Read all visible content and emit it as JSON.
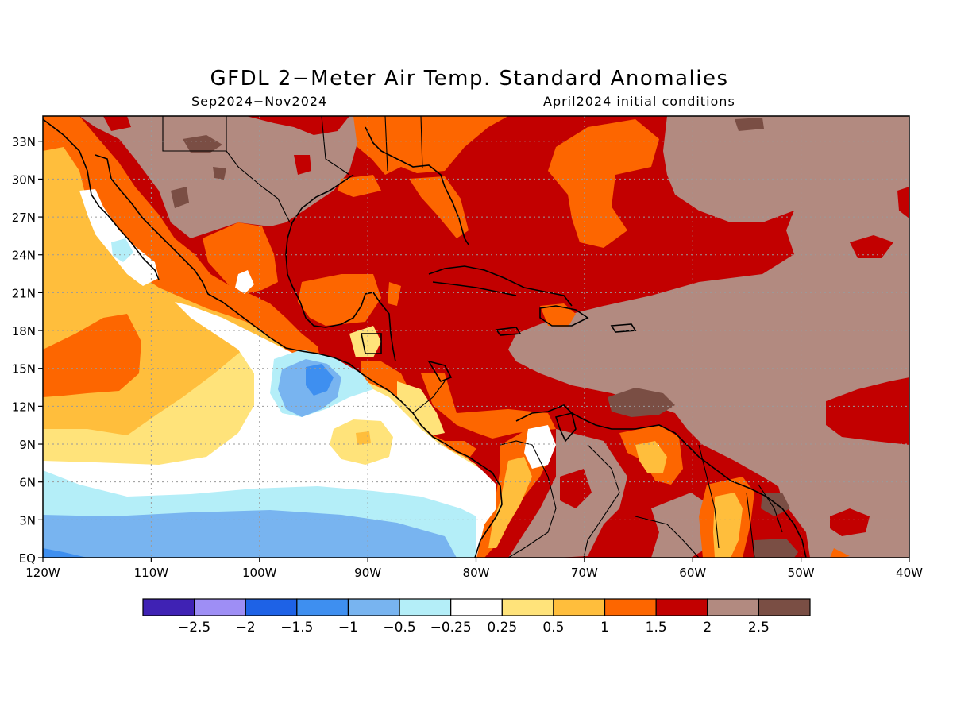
{
  "title": "GFDL 2−Meter Air Temp. Standard Anomalies",
  "subtitle_left": "Sep2024−Nov2024",
  "subtitle_right": "April2024 initial conditions",
  "map": {
    "lon_range": [
      -120,
      -40
    ],
    "lat_range": [
      0,
      35
    ],
    "lon_ticks": [
      {
        "value": -120,
        "label": "120W"
      },
      {
        "value": -110,
        "label": "110W"
      },
      {
        "value": -100,
        "label": "100W"
      },
      {
        "value": -90,
        "label": "90W"
      },
      {
        "value": -80,
        "label": "80W"
      },
      {
        "value": -70,
        "label": "70W"
      },
      {
        "value": -60,
        "label": "60W"
      },
      {
        "value": -50,
        "label": "50W"
      },
      {
        "value": -40,
        "label": "40W"
      }
    ],
    "lat_ticks": [
      {
        "value": 0,
        "label": "EQ"
      },
      {
        "value": 3,
        "label": "3N"
      },
      {
        "value": 6,
        "label": "6N"
      },
      {
        "value": 9,
        "label": "9N"
      },
      {
        "value": 12,
        "label": "12N"
      },
      {
        "value": 15,
        "label": "15N"
      },
      {
        "value": 18,
        "label": "18N"
      },
      {
        "value": 21,
        "label": "21N"
      },
      {
        "value": 24,
        "label": "24N"
      },
      {
        "value": 27,
        "label": "27N"
      },
      {
        "value": 30,
        "label": "30N"
      },
      {
        "value": 33,
        "label": "33N"
      }
    ],
    "grid": true
  },
  "colorbar": {
    "colors": [
      "#3f22b4",
      "#9e8ef5",
      "#1e62e6",
      "#3e8ff0",
      "#78b4f0",
      "#b4eef8",
      "#ffffff",
      "#ffe37a",
      "#ffbe3c",
      "#fd6600",
      "#c20000",
      "#b28a80",
      "#7a4e44"
    ],
    "labels": [
      "−2.5",
      "−2",
      "−1.5",
      "−1",
      "−0.5",
      "−0.25",
      "0.25",
      "0.5",
      "1",
      "1.5",
      "2",
      "2.5"
    ]
  }
}
